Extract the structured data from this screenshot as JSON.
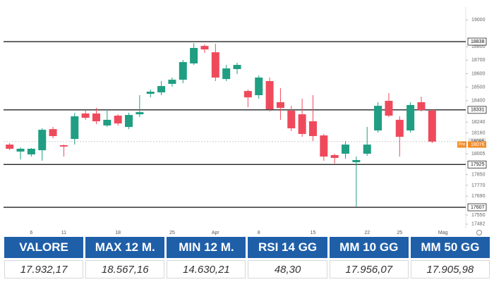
{
  "chart_data": {
    "type": "candlestick",
    "categories": [
      null,
      null,
      "6",
      null,
      null,
      "11",
      null,
      null,
      null,
      null,
      "18",
      null,
      null,
      null,
      null,
      "25",
      null,
      null,
      null,
      "Apr",
      null,
      null,
      null,
      "8",
      null,
      null,
      null,
      null,
      "15",
      null,
      null,
      null,
      null,
      "22",
      null,
      null,
      "25",
      null,
      null,
      null,
      "Mag"
    ],
    "open": [
      18073,
      18021,
      18000,
      18031,
      18188,
      18068,
      18115,
      18304,
      18304,
      18215,
      18288,
      18204,
      18298,
      18450,
      18461,
      18524,
      18555,
      18676,
      18806,
      18759,
      18560,
      18634,
      18471,
      18440,
      18545,
      18388,
      18325,
      18298,
      18246,
      18141,
      17995,
      18005,
      17942,
      18005,
      18178,
      18398,
      18257,
      18178,
      18388,
      18325,
      null
    ],
    "high": [
      18084,
      18052,
      18047,
      18194,
      18204,
      18073,
      18309,
      18325,
      18346,
      18335,
      18298,
      18309,
      18440,
      18482,
      18545,
      18571,
      18702,
      18827,
      18817,
      18822,
      18665,
      18681,
      18482,
      18587,
      18571,
      18492,
      18361,
      18414,
      18440,
      18152,
      18005,
      18099,
      17984,
      18204,
      18388,
      18456,
      18283,
      18388,
      18429,
      18335,
      null
    ],
    "low": [
      18031,
      17963,
      17984,
      17953,
      18120,
      17984,
      18073,
      18257,
      18225,
      18204,
      18215,
      18188,
      18277,
      18424,
      18440,
      18503,
      18529,
      18665,
      18754,
      18545,
      18545,
      18597,
      18351,
      18414,
      18319,
      18257,
      18173,
      18131,
      18099,
      17953,
      17932,
      17968,
      17612,
      17989,
      18162,
      18277,
      17984,
      18162,
      18319,
      18084,
      null
    ],
    "close": [
      18042,
      18042,
      18042,
      18183,
      18136,
      18058,
      18283,
      18272,
      18246,
      18257,
      18230,
      18293,
      18314,
      18466,
      18508,
      18555,
      18686,
      18791,
      18780,
      18571,
      18639,
      18665,
      18424,
      18571,
      18335,
      18346,
      18194,
      18152,
      18136,
      17984,
      17974,
      18073,
      17958,
      18073,
      18361,
      18288,
      18131,
      18367,
      18330,
      18095,
      null
    ],
    "up_color": "#1f9e82",
    "down_color": "#ef4a5c",
    "ylim": [
      17450,
      19053
    ],
    "yticks": [
      19000,
      18800,
      18700,
      18600,
      18500,
      18400,
      18240,
      18160,
      18005,
      17850,
      17770,
      17690,
      17550,
      17482
    ],
    "levels": [
      18838,
      18331,
      17925,
      17607
    ],
    "last_price": 18095,
    "pre_market": {
      "value": 18076,
      "label": "Pre"
    }
  },
  "table": {
    "headers": [
      "VALORE",
      "MAX 12 M.",
      "MIN 12 M.",
      "RSI 14 GG",
      "MM 10 GG",
      "MM 50 GG"
    ],
    "values": [
      "17.932,17",
      "18.567,16",
      "14.630,21",
      "48,30",
      "17.956,07",
      "17.905,98"
    ]
  }
}
